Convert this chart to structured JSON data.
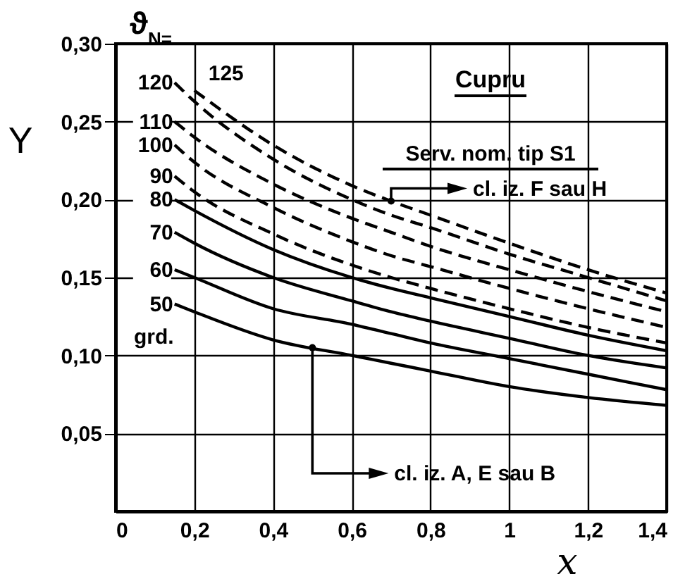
{
  "chart_data": {
    "type": "line",
    "xlabel": "x",
    "ylabel": "Y",
    "legend_title": "ϑ$_{N}$=",
    "xlim": [
      0,
      1.4
    ],
    "ylim": [
      0,
      0.3
    ],
    "xticks": [
      0,
      {
        "value": 0.2,
        "label": "0,2"
      },
      {
        "value": 0.4,
        "label": "0,4"
      },
      {
        "value": 0.6,
        "label": "0,6"
      },
      {
        "value": 0.8,
        "label": "0,8"
      },
      1,
      {
        "value": 1.2,
        "label": "1,2"
      },
      {
        "value": 1.4,
        "label": "1,4"
      }
    ],
    "yticks": [
      {
        "value": 0.05,
        "label": "0,05"
      },
      {
        "value": 0.1,
        "label": "0,10"
      },
      {
        "value": 0.15,
        "label": "0,15"
      },
      {
        "value": 0.2,
        "label": "0,20"
      },
      {
        "value": 0.25,
        "label": "0,25"
      },
      {
        "value": 0.3,
        "label": "0,30"
      }
    ],
    "grid": true,
    "legend": false,
    "marker": "none",
    "x": [
      0.15,
      0.2,
      0.4,
      0.6,
      0.7,
      0.8,
      1.0,
      1.2,
      1.4
    ],
    "series": [
      {
        "name": "50",
        "color": "#000000",
        "line_style": "solid",
        "values": [
          0.133,
          0.128,
          0.11,
          0.1,
          0.095,
          0.09,
          0.08,
          0.073,
          0.068
        ]
      },
      {
        "name": "60",
        "color": "#000000",
        "line_style": "solid",
        "values": [
          0.155,
          0.15,
          0.13,
          0.12,
          0.114,
          0.108,
          0.098,
          0.088,
          0.078
        ]
      },
      {
        "name": "70",
        "color": "#000000",
        "line_style": "solid",
        "values": [
          0.179,
          0.172,
          0.15,
          0.135,
          0.128,
          0.122,
          0.111,
          0.1,
          0.092
        ]
      },
      {
        "name": "80",
        "color": "#000000",
        "line_style": "solid",
        "values": [
          0.2,
          0.193,
          0.168,
          0.15,
          0.143,
          0.137,
          0.125,
          0.113,
          0.103
        ]
      },
      {
        "name": "90",
        "color": "#000000",
        "line_style": "dashed",
        "values": [
          0.215,
          0.205,
          0.178,
          0.158,
          0.15,
          0.143,
          0.13,
          0.118,
          0.108
        ]
      },
      {
        "name": "100",
        "color": "#000000",
        "line_style": "dashed",
        "values": [
          0.235,
          0.224,
          0.195,
          0.173,
          0.164,
          0.157,
          0.143,
          0.13,
          0.118
        ]
      },
      {
        "name": "110",
        "color": "#000000",
        "line_style": "dashed",
        "values": [
          0.25,
          0.24,
          0.21,
          0.188,
          0.179,
          0.17,
          0.155,
          0.141,
          0.128
        ]
      },
      {
        "name": "120",
        "color": "#000000",
        "line_style": "dashed",
        "values": [
          0.275,
          0.263,
          0.226,
          0.2,
          0.19,
          0.182,
          0.165,
          0.15,
          0.135
        ]
      },
      {
        "name": "125",
        "color": "#000000",
        "line_style": "dashed",
        "values": [
          null,
          0.27,
          0.235,
          0.209,
          0.199,
          0.19,
          0.172,
          0.155,
          0.14
        ]
      }
    ],
    "annotations": [
      "Cupru",
      "Serv. nom. tip S1",
      "grd.",
      {
        "text": "cl. iz. F sau H",
        "x": 0.7,
        "y": 0.199
      },
      {
        "text": "cl. iz. A, E sau B",
        "x": 0.5,
        "y": 0.105
      }
    ]
  }
}
